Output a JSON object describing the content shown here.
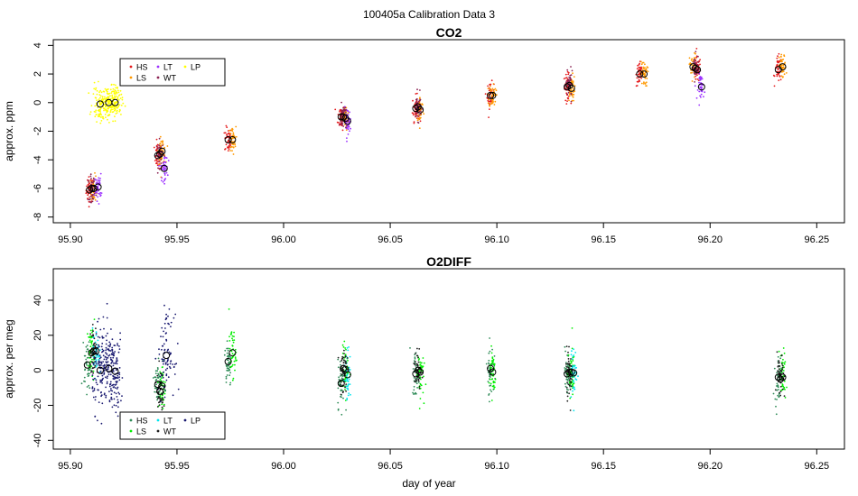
{
  "figure": {
    "title": "100405a   Calibration Data 3",
    "xlabel": "day of year"
  },
  "chart_data": [
    {
      "type": "scatter",
      "panel": "top",
      "title": "CO2",
      "ylabel": "approx. ppm",
      "xlim": [
        95.892,
        96.263
      ],
      "ylim": [
        -8.4,
        4.4
      ],
      "x_ticks": [
        95.9,
        95.95,
        96.0,
        96.05,
        96.1,
        96.15,
        96.2,
        96.25
      ],
      "x_tick_labels": [
        "95.90",
        "95.95",
        "96.00",
        "96.05",
        "96.10",
        "96.15",
        "96.20",
        "96.25"
      ],
      "y_ticks": [
        -8,
        -6,
        -4,
        -2,
        0,
        2,
        4
      ],
      "y_tick_labels": [
        "-8",
        "-6",
        "-4",
        "-2",
        "0",
        "2",
        "4"
      ],
      "legend": {
        "position": "top-left",
        "entries": [
          "HS",
          "LS",
          "LT",
          "WT",
          "LP"
        ]
      },
      "series": [
        {
          "name": "HS",
          "color": "#e41a1c",
          "means": [
            [
              95.909,
              -6.1
            ],
            [
              95.941,
              -3.7
            ],
            [
              95.974,
              -2.6
            ],
            [
              96.027,
              -1.0
            ],
            [
              96.062,
              -0.4
            ],
            [
              96.097,
              0.5
            ],
            [
              96.133,
              1.1
            ],
            [
              96.167,
              2.0
            ],
            [
              96.194,
              2.3
            ],
            [
              96.232,
              2.3
            ]
          ]
        },
        {
          "name": "LS",
          "color": "#ff9900",
          "means": [
            [
              95.911,
              -6.0
            ],
            [
              95.943,
              -3.4
            ],
            [
              95.976,
              -2.6
            ],
            [
              96.029,
              -1.1
            ],
            [
              96.064,
              -0.5
            ],
            [
              96.098,
              0.5
            ],
            [
              96.135,
              1.0
            ],
            [
              96.169,
              2.0
            ],
            [
              96.192,
              2.5
            ],
            [
              96.234,
              2.5
            ]
          ]
        },
        {
          "name": "LT",
          "color": "#9b30ff",
          "means": [
            [
              95.913,
              -5.9
            ],
            [
              95.944,
              -4.6
            ],
            [
              96.03,
              -1.3
            ],
            [
              96.196,
              1.1
            ]
          ]
        },
        {
          "name": "WT",
          "color": "#8b2252",
          "means": [
            [
              95.91,
              -6.0
            ],
            [
              95.942,
              -3.6
            ],
            [
              96.028,
              -1.0
            ],
            [
              96.063,
              -0.3
            ],
            [
              96.134,
              1.2
            ],
            [
              96.193,
              2.4
            ]
          ]
        },
        {
          "name": "LP",
          "color": "#ffff00",
          "means": [
            [
              95.914,
              -0.1
            ],
            [
              95.918,
              0.0
            ],
            [
              95.921,
              0.0
            ]
          ]
        }
      ]
    },
    {
      "type": "scatter",
      "panel": "bottom",
      "title": "O2DIFF",
      "ylabel": "approx. per meg",
      "xlim": [
        95.892,
        96.263
      ],
      "ylim": [
        -45,
        58
      ],
      "x_ticks": [
        95.9,
        95.95,
        96.0,
        96.05,
        96.1,
        96.15,
        96.2,
        96.25
      ],
      "x_tick_labels": [
        "95.90",
        "95.95",
        "96.00",
        "96.05",
        "96.10",
        "96.15",
        "96.20",
        "96.25"
      ],
      "y_ticks": [
        -40,
        -20,
        0,
        20,
        40
      ],
      "y_tick_labels": [
        "-40",
        "-20",
        "0",
        "20",
        "40"
      ],
      "legend": {
        "position": "bottom-left",
        "entries": [
          "HS",
          "LS",
          "LT",
          "WT",
          "LP"
        ]
      },
      "series": [
        {
          "name": "HS",
          "color": "#2e8b57",
          "means": [
            [
              95.908,
              3.0
            ],
            [
              95.941,
              -8.0
            ],
            [
              95.974,
              5.0
            ],
            [
              96.027,
              -7.5
            ],
            [
              96.062,
              -2.0
            ],
            [
              96.097,
              1.0
            ],
            [
              96.133,
              -2.0
            ],
            [
              96.232,
              -4.0
            ]
          ]
        },
        {
          "name": "LS",
          "color": "#00ee00",
          "means": [
            [
              95.91,
              10.0
            ],
            [
              95.943,
              -9.0
            ],
            [
              95.976,
              10.0
            ],
            [
              96.029,
              0.5
            ],
            [
              96.064,
              -1.0
            ],
            [
              96.098,
              -1.0
            ],
            [
              96.135,
              -1.0
            ],
            [
              96.234,
              -4.0
            ]
          ]
        },
        {
          "name": "LT",
          "color": "#00e5ee",
          "means": [
            [
              95.912,
              11.0
            ],
            [
              96.03,
              -2.5
            ],
            [
              96.136,
              -1.5
            ]
          ]
        },
        {
          "name": "WT",
          "color": "#1e1e1e",
          "means": [
            [
              95.911,
              11.0
            ],
            [
              95.942,
              -12.0
            ],
            [
              96.028,
              1.0
            ],
            [
              96.063,
              0.0
            ],
            [
              96.134,
              -1.0
            ],
            [
              96.233,
              -5.0
            ]
          ]
        },
        {
          "name": "LP",
          "color": "#191970",
          "means": [
            [
              95.914,
              0.0
            ],
            [
              95.918,
              1.0
            ],
            [
              95.921,
              -0.5
            ],
            [
              95.945,
              8.5
            ]
          ]
        }
      ]
    }
  ]
}
